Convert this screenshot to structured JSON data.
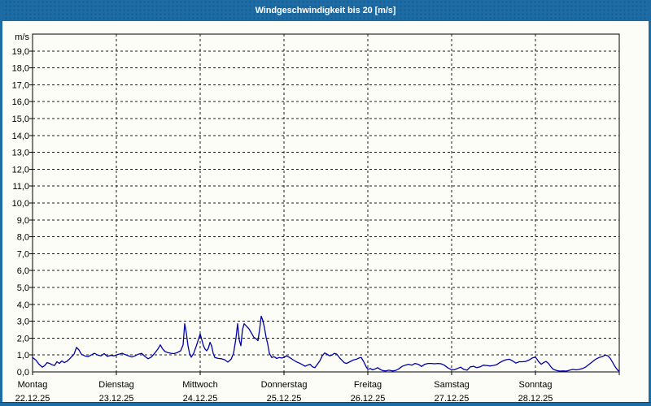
{
  "window": {
    "title": "Windgeschwindigkeit bis 20 [m/s]"
  },
  "theme": {
    "titlebar_bg": "#1e6ca5",
    "border_color": "#1e6ca5",
    "content_bg": "#fcfdf7",
    "grid_color": "#1b1b1b",
    "axis_color": "#000000",
    "text_color": "#000000",
    "title_text_color": "#ffffff",
    "line_color": "#0000a8"
  },
  "chart_data": {
    "type": "line",
    "title": "Windgeschwindigkeit bis 20 [m/s]",
    "ylabel": "m/s",
    "xlabel": "",
    "ylim": [
      0,
      20
    ],
    "y_tick_step": 1.0,
    "y_tick_labels": [
      "0,0",
      "1,0",
      "2,0",
      "3,0",
      "4,0",
      "5,0",
      "6,0",
      "7,0",
      "8,0",
      "9,0",
      "10,0",
      "11,0",
      "12,0",
      "13,0",
      "14,0",
      "15,0",
      "16,0",
      "17,0",
      "18,0",
      "19,0"
    ],
    "grid": {
      "horizontal": "dashed",
      "vertical_per_day": "dashed"
    },
    "legend": "none",
    "x_axis_days": [
      {
        "name": "Montag",
        "date": "22.12.25"
      },
      {
        "name": "Dienstag",
        "date": "23.12.25"
      },
      {
        "name": "Mittwoch",
        "date": "24.12.25"
      },
      {
        "name": "Donnerstag",
        "date": "25.12.25"
      },
      {
        "name": "Freitag",
        "date": "26.12.25"
      },
      {
        "name": "Samstag",
        "date": "27.12.25"
      },
      {
        "name": "Sonntag",
        "date": "28.12.25"
      }
    ],
    "series": [
      {
        "name": "Windgeschwindigkeit [m/s]",
        "color": "#0000a8",
        "x_unit": "days_from_22.12.25",
        "points": [
          [
            0.0,
            0.85
          ],
          [
            0.039,
            0.7
          ],
          [
            0.078,
            0.45
          ],
          [
            0.117,
            0.28
          ],
          [
            0.146,
            0.38
          ],
          [
            0.175,
            0.55
          ],
          [
            0.204,
            0.5
          ],
          [
            0.233,
            0.42
          ],
          [
            0.262,
            0.38
          ],
          [
            0.291,
            0.6
          ],
          [
            0.32,
            0.5
          ],
          [
            0.35,
            0.65
          ],
          [
            0.379,
            0.55
          ],
          [
            0.408,
            0.62
          ],
          [
            0.437,
            0.75
          ],
          [
            0.466,
            0.9
          ],
          [
            0.495,
            1.05
          ],
          [
            0.524,
            1.45
          ],
          [
            0.553,
            1.3
          ],
          [
            0.583,
            1.05
          ],
          [
            0.621,
            0.95
          ],
          [
            0.66,
            0.9
          ],
          [
            0.699,
            1.0
          ],
          [
            0.738,
            1.1
          ],
          [
            0.777,
            1.0
          ],
          [
            0.816,
            0.95
          ],
          [
            0.854,
            1.08
          ],
          [
            0.893,
            0.92
          ],
          [
            0.932,
            0.98
          ],
          [
            0.971,
            0.95
          ],
          [
            1.029,
            1.05
          ],
          [
            1.068,
            1.1
          ],
          [
            1.107,
            1.02
          ],
          [
            1.146,
            0.95
          ],
          [
            1.184,
            0.88
          ],
          [
            1.223,
            0.95
          ],
          [
            1.262,
            1.05
          ],
          [
            1.301,
            1.1
          ],
          [
            1.34,
            0.92
          ],
          [
            1.379,
            0.78
          ],
          [
            1.417,
            0.88
          ],
          [
            1.456,
            1.1
          ],
          [
            1.495,
            1.35
          ],
          [
            1.524,
            1.6
          ],
          [
            1.553,
            1.35
          ],
          [
            1.583,
            1.2
          ],
          [
            1.612,
            1.15
          ],
          [
            1.65,
            1.1
          ],
          [
            1.689,
            1.08
          ],
          [
            1.728,
            1.15
          ],
          [
            1.767,
            1.25
          ],
          [
            1.796,
            1.6
          ],
          [
            1.816,
            2.85
          ],
          [
            1.835,
            2.3
          ],
          [
            1.854,
            1.55
          ],
          [
            1.873,
            1.1
          ],
          [
            1.893,
            0.87
          ],
          [
            1.922,
            1.1
          ],
          [
            1.951,
            1.5
          ],
          [
            1.971,
            1.8
          ],
          [
            2.0,
            2.25
          ],
          [
            2.019,
            1.9
          ],
          [
            2.039,
            1.55
          ],
          [
            2.058,
            1.35
          ],
          [
            2.078,
            1.25
          ],
          [
            2.097,
            1.4
          ],
          [
            2.117,
            1.75
          ],
          [
            2.136,
            1.55
          ],
          [
            2.155,
            1.1
          ],
          [
            2.175,
            0.85
          ],
          [
            2.214,
            0.8
          ],
          [
            2.252,
            0.78
          ],
          [
            2.291,
            0.72
          ],
          [
            2.33,
            0.58
          ],
          [
            2.369,
            0.75
          ],
          [
            2.398,
            1.1
          ],
          [
            2.427,
            2.0
          ],
          [
            2.447,
            2.85
          ],
          [
            2.466,
            1.9
          ],
          [
            2.485,
            1.55
          ],
          [
            2.505,
            2.5
          ],
          [
            2.524,
            2.85
          ],
          [
            2.553,
            2.7
          ],
          [
            2.583,
            2.55
          ],
          [
            2.612,
            2.3
          ],
          [
            2.641,
            2.05
          ],
          [
            2.67,
            1.95
          ],
          [
            2.689,
            1.85
          ],
          [
            2.709,
            2.5
          ],
          [
            2.728,
            3.3
          ],
          [
            2.748,
            3.05
          ],
          [
            2.767,
            2.6
          ],
          [
            2.786,
            2.05
          ],
          [
            2.806,
            1.65
          ],
          [
            2.825,
            1.1
          ],
          [
            2.854,
            0.85
          ],
          [
            2.883,
            0.9
          ],
          [
            2.913,
            0.8
          ],
          [
            2.942,
            0.85
          ],
          [
            2.971,
            0.82
          ],
          [
            3.0,
            0.85
          ],
          [
            3.029,
            0.95
          ],
          [
            3.068,
            0.85
          ],
          [
            3.107,
            0.72
          ],
          [
            3.146,
            0.6
          ],
          [
            3.184,
            0.52
          ],
          [
            3.223,
            0.42
          ],
          [
            3.252,
            0.33
          ],
          [
            3.281,
            0.4
          ],
          [
            3.311,
            0.45
          ],
          [
            3.34,
            0.3
          ],
          [
            3.369,
            0.25
          ],
          [
            3.398,
            0.45
          ],
          [
            3.427,
            0.65
          ],
          [
            3.456,
            0.95
          ],
          [
            3.485,
            1.12
          ],
          [
            3.515,
            1.05
          ],
          [
            3.544,
            0.95
          ],
          [
            3.573,
            1.0
          ],
          [
            3.602,
            1.1
          ],
          [
            3.631,
            1.05
          ],
          [
            3.66,
            0.85
          ],
          [
            3.689,
            0.7
          ],
          [
            3.718,
            0.55
          ],
          [
            3.748,
            0.5
          ],
          [
            3.786,
            0.6
          ],
          [
            3.825,
            0.7
          ],
          [
            3.864,
            0.75
          ],
          [
            3.893,
            0.82
          ],
          [
            3.922,
            0.85
          ],
          [
            3.951,
            0.6
          ],
          [
            3.981,
            0.3
          ],
          [
            4.0,
            0.15
          ],
          [
            4.029,
            0.2
          ],
          [
            4.058,
            0.12
          ],
          [
            4.087,
            0.18
          ],
          [
            4.117,
            0.25
          ],
          [
            4.146,
            0.15
          ],
          [
            4.175,
            0.08
          ],
          [
            4.214,
            0.06
          ],
          [
            4.252,
            0.1
          ],
          [
            4.291,
            0.06
          ],
          [
            4.33,
            0.08
          ],
          [
            4.369,
            0.18
          ],
          [
            4.408,
            0.32
          ],
          [
            4.447,
            0.4
          ],
          [
            4.485,
            0.45
          ],
          [
            4.524,
            0.4
          ],
          [
            4.563,
            0.5
          ],
          [
            4.602,
            0.45
          ],
          [
            4.641,
            0.32
          ],
          [
            4.68,
            0.45
          ],
          [
            4.718,
            0.5
          ],
          [
            4.757,
            0.5
          ],
          [
            4.796,
            0.48
          ],
          [
            4.835,
            0.5
          ],
          [
            4.874,
            0.48
          ],
          [
            4.913,
            0.4
          ],
          [
            4.951,
            0.25
          ],
          [
            4.99,
            0.15
          ],
          [
            5.029,
            0.12
          ],
          [
            5.068,
            0.2
          ],
          [
            5.107,
            0.28
          ],
          [
            5.146,
            0.15
          ],
          [
            5.184,
            0.1
          ],
          [
            5.223,
            0.3
          ],
          [
            5.262,
            0.33
          ],
          [
            5.301,
            0.25
          ],
          [
            5.34,
            0.3
          ],
          [
            5.379,
            0.4
          ],
          [
            5.417,
            0.38
          ],
          [
            5.456,
            0.35
          ],
          [
            5.495,
            0.38
          ],
          [
            5.534,
            0.42
          ],
          [
            5.573,
            0.55
          ],
          [
            5.612,
            0.65
          ],
          [
            5.65,
            0.72
          ],
          [
            5.689,
            0.75
          ],
          [
            5.728,
            0.65
          ],
          [
            5.767,
            0.52
          ],
          [
            5.806,
            0.6
          ],
          [
            5.845,
            0.6
          ],
          [
            5.883,
            0.62
          ],
          [
            5.922,
            0.7
          ],
          [
            5.961,
            0.82
          ],
          [
            6.0,
            0.88
          ],
          [
            6.039,
            0.6
          ],
          [
            6.068,
            0.45
          ],
          [
            6.097,
            0.55
          ],
          [
            6.126,
            0.62
          ],
          [
            6.155,
            0.5
          ],
          [
            6.184,
            0.3
          ],
          [
            6.214,
            0.15
          ],
          [
            6.252,
            0.08
          ],
          [
            6.291,
            0.05
          ],
          [
            6.33,
            0.06
          ],
          [
            6.369,
            0.05
          ],
          [
            6.408,
            0.1
          ],
          [
            6.447,
            0.15
          ],
          [
            6.485,
            0.12
          ],
          [
            6.524,
            0.15
          ],
          [
            6.563,
            0.2
          ],
          [
            6.602,
            0.3
          ],
          [
            6.641,
            0.45
          ],
          [
            6.68,
            0.6
          ],
          [
            6.718,
            0.75
          ],
          [
            6.757,
            0.85
          ],
          [
            6.796,
            0.9
          ],
          [
            6.835,
            1.0
          ],
          [
            6.864,
            0.95
          ],
          [
            6.893,
            0.8
          ],
          [
            6.922,
            0.55
          ],
          [
            6.951,
            0.3
          ],
          [
            6.981,
            0.1
          ],
          [
            7.0,
            0.05
          ]
        ]
      }
    ]
  }
}
